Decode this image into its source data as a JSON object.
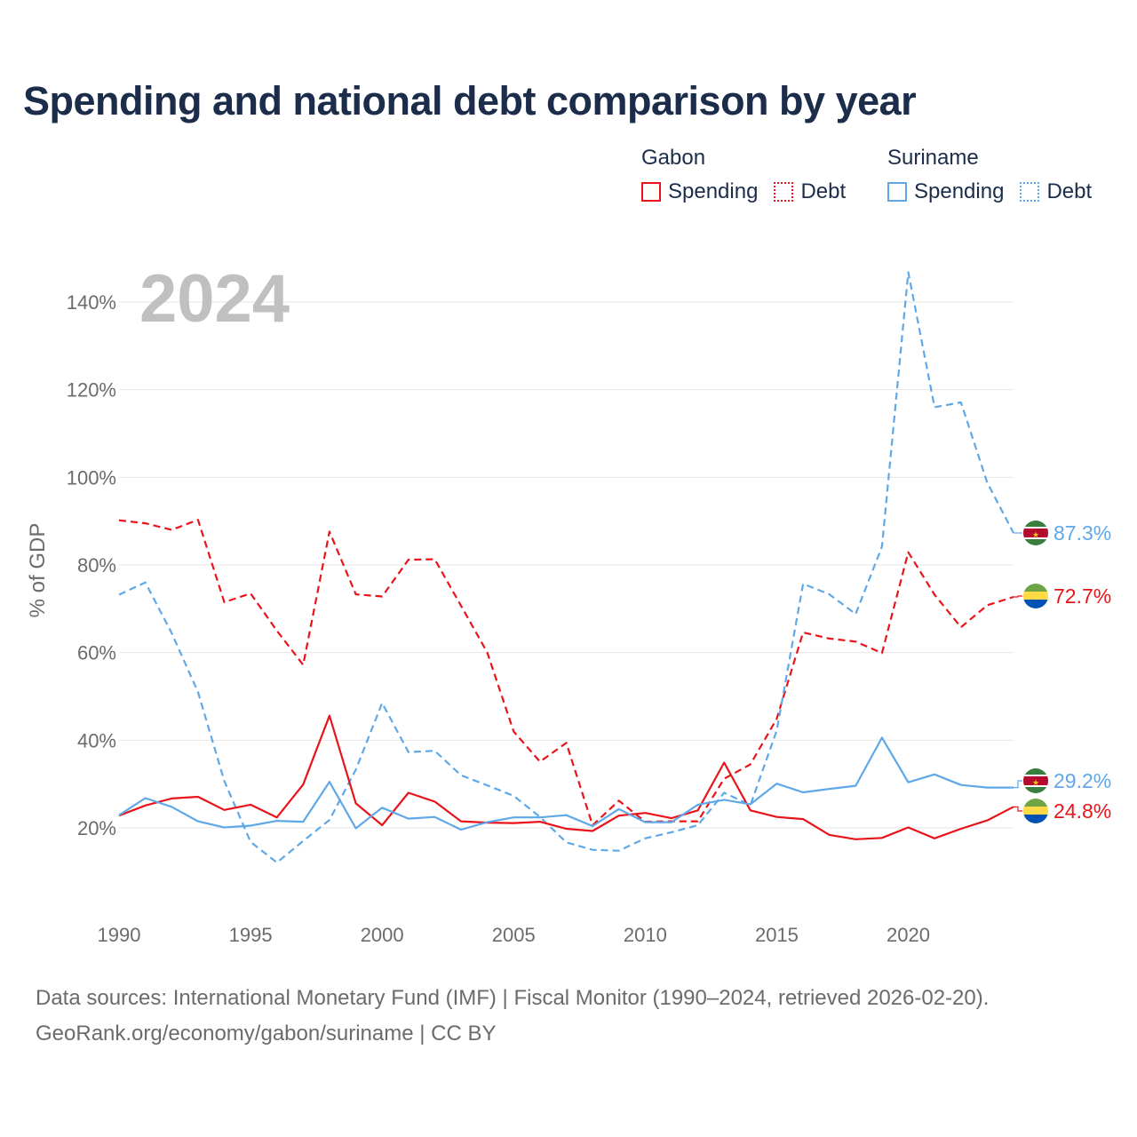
{
  "title": "Spending and national debt comparison by year",
  "legend": {
    "groups": [
      {
        "country": "Gabon",
        "items": [
          {
            "label": "Spending",
            "style": "solid",
            "color": "#e8141a"
          },
          {
            "label": "Debt",
            "style": "dotted",
            "color": "#e8141a"
          }
        ]
      },
      {
        "country": "Suriname",
        "items": [
          {
            "label": "Spending",
            "style": "solid",
            "color": "#5fa8e8"
          },
          {
            "label": "Debt",
            "style": "dotted",
            "color": "#5fa8e8"
          }
        ]
      }
    ]
  },
  "year_overlay": "2024",
  "source": {
    "line1": "Data sources: International Monetary Fund (IMF) | Fiscal Monitor (1990–2024, retrieved 2026-02-20).",
    "line2": "GeoRank.org/economy/gabon/suriname | CC BY"
  },
  "chart_data": {
    "type": "line",
    "title": "Spending and national debt comparison by year",
    "xlabel": "",
    "ylabel": "% of GDP",
    "xlim": [
      1990,
      2024
    ],
    "ylim": [
      0,
      150
    ],
    "x_ticks": [
      "1990",
      "1995",
      "2000",
      "2005",
      "2010",
      "2015",
      "2020"
    ],
    "y_ticks": [
      "20%",
      "40%",
      "60%",
      "80%",
      "100%",
      "120%",
      "140%"
    ],
    "y_tick_values": [
      20,
      40,
      60,
      80,
      100,
      120,
      140
    ],
    "grid": true,
    "x": [
      1990,
      1991,
      1992,
      1993,
      1994,
      1995,
      1996,
      1997,
      1998,
      1999,
      2000,
      2001,
      2002,
      2003,
      2004,
      2005,
      2006,
      2007,
      2008,
      2009,
      2010,
      2011,
      2012,
      2013,
      2014,
      2015,
      2016,
      2017,
      2018,
      2019,
      2020,
      2021,
      2022,
      2023,
      2024
    ],
    "series": [
      {
        "name": "Gabon Debt",
        "country": "Gabon",
        "measure": "Debt",
        "color": "#e8141a",
        "dashed": true,
        "values": [
          90.2,
          89.5,
          88.0,
          90.3,
          71.5,
          73.5,
          65.0,
          57.2,
          87.6,
          73.3,
          72.8,
          81.2,
          81.3,
          70.7,
          60.0,
          42.0,
          35.1,
          39.4,
          20.6,
          26.2,
          21.4,
          21.5,
          21.5,
          31.2,
          34.5,
          44.9,
          64.6,
          63.2,
          62.5,
          59.9,
          82.9,
          73.2,
          65.8,
          70.8,
          72.7
        ],
        "end_label": "72.7%"
      },
      {
        "name": "Suriname Debt",
        "country": "Suriname",
        "measure": "Debt",
        "color": "#5fa8e8",
        "dashed": true,
        "values": [
          73.2,
          76.0,
          64.5,
          51.0,
          30.7,
          16.8,
          12.1,
          17.0,
          21.8,
          33.3,
          48.5,
          37.3,
          37.6,
          32.0,
          29.7,
          27.3,
          22.5,
          16.7,
          15.0,
          14.8,
          17.6,
          19.0,
          20.6,
          28.0,
          25.2,
          42.2,
          75.7,
          73.3,
          68.8,
          84.2,
          146.8,
          116.0,
          117.1,
          98.8,
          87.3
        ],
        "end_label": "87.3%"
      },
      {
        "name": "Gabon Spending",
        "country": "Gabon",
        "measure": "Spending",
        "color": "#e8141a",
        "dashed": false,
        "values": [
          22.8,
          25.1,
          26.7,
          27.1,
          24.1,
          25.3,
          22.4,
          29.9,
          45.6,
          25.6,
          20.6,
          28.0,
          26.0,
          21.5,
          21.2,
          21.1,
          21.4,
          19.8,
          19.3,
          22.8,
          23.4,
          22.2,
          24.0,
          34.9,
          24.0,
          22.5,
          22.0,
          18.4,
          17.4,
          17.7,
          20.1,
          17.6,
          19.8,
          21.7,
          24.8
        ],
        "end_label": "24.8%"
      },
      {
        "name": "Suriname Spending",
        "country": "Suriname",
        "measure": "Spending",
        "color": "#5fa8e8",
        "dashed": false,
        "values": [
          22.9,
          26.8,
          24.8,
          21.5,
          20.1,
          20.5,
          21.6,
          21.4,
          30.5,
          19.9,
          24.6,
          22.1,
          22.5,
          19.6,
          21.3,
          22.4,
          22.4,
          22.9,
          20.4,
          24.3,
          21.3,
          21.3,
          25.3,
          26.4,
          25.4,
          30.1,
          28.1,
          28.9,
          29.6,
          40.6,
          30.4,
          32.2,
          29.8,
          29.2,
          29.2
        ],
        "end_label": "29.2%"
      }
    ]
  }
}
